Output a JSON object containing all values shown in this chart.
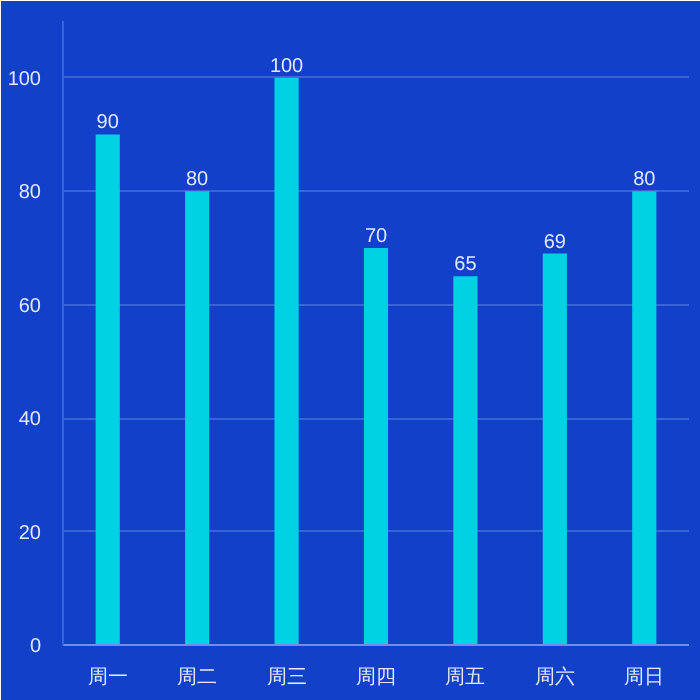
{
  "chart_data": {
    "type": "bar",
    "categories": [
      "周一",
      "周二",
      "周三",
      "周四",
      "周五",
      "周六",
      "周日"
    ],
    "values": [
      90,
      80,
      100,
      70,
      65,
      69,
      80
    ],
    "color": "#00d2e4",
    "ylim": [
      0,
      110
    ],
    "yticks": [
      0,
      20,
      40,
      60,
      80,
      100
    ],
    "grid": "y",
    "data_labels": true
  }
}
